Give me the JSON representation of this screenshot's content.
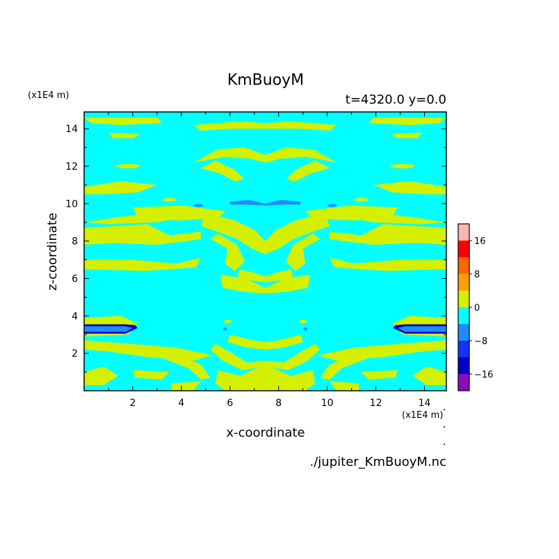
{
  "chart_data": {
    "type": "heatmap",
    "title": "KmBuoyM",
    "subtitle": "t=4320.0 y=0.0",
    "xlabel": "x-coordinate",
    "ylabel": "z-coordinate",
    "x_unit": "(x1E4 m)",
    "y_unit": "(x1E4 m)",
    "xlim": [
      0,
      14.9
    ],
    "ylim": [
      0,
      14.9
    ],
    "x_ticks": [
      2,
      4,
      6,
      8,
      10,
      12,
      14
    ],
    "y_ticks": [
      2,
      4,
      6,
      8,
      10,
      12,
      14
    ],
    "x_tick_labels": [
      "2",
      "4",
      "6",
      "8",
      "10",
      "12",
      "14"
    ],
    "y_tick_labels": [
      "2",
      "4",
      "6",
      "8",
      "10",
      "12",
      "14"
    ],
    "colorbar": {
      "levels": [
        -20,
        -16,
        -12,
        -8,
        -4,
        0,
        4,
        8,
        12,
        16,
        20
      ],
      "colors": [
        "#8a0dbd",
        "#0000c8",
        "#1432ff",
        "#1e8cff",
        "#00ffff",
        "#d4f000",
        "#ffa000",
        "#ff6400",
        "#ff0000",
        "#ffb4b4"
      ],
      "tick_values": [
        -16,
        -8,
        0,
        8,
        16
      ],
      "tick_labels": [
        "−16",
        "−8",
        "0",
        "8",
        "16"
      ]
    },
    "background_value_band": "-4 to 0",
    "background_color": "#00ffff",
    "dominant_positive_color": "#d4f000",
    "negative_patch_color": "#1e8cff",
    "strong_negative_color": "#0000c8"
  },
  "footer": {
    "filename": "./jupiter_KmBuoyM.nc"
  }
}
